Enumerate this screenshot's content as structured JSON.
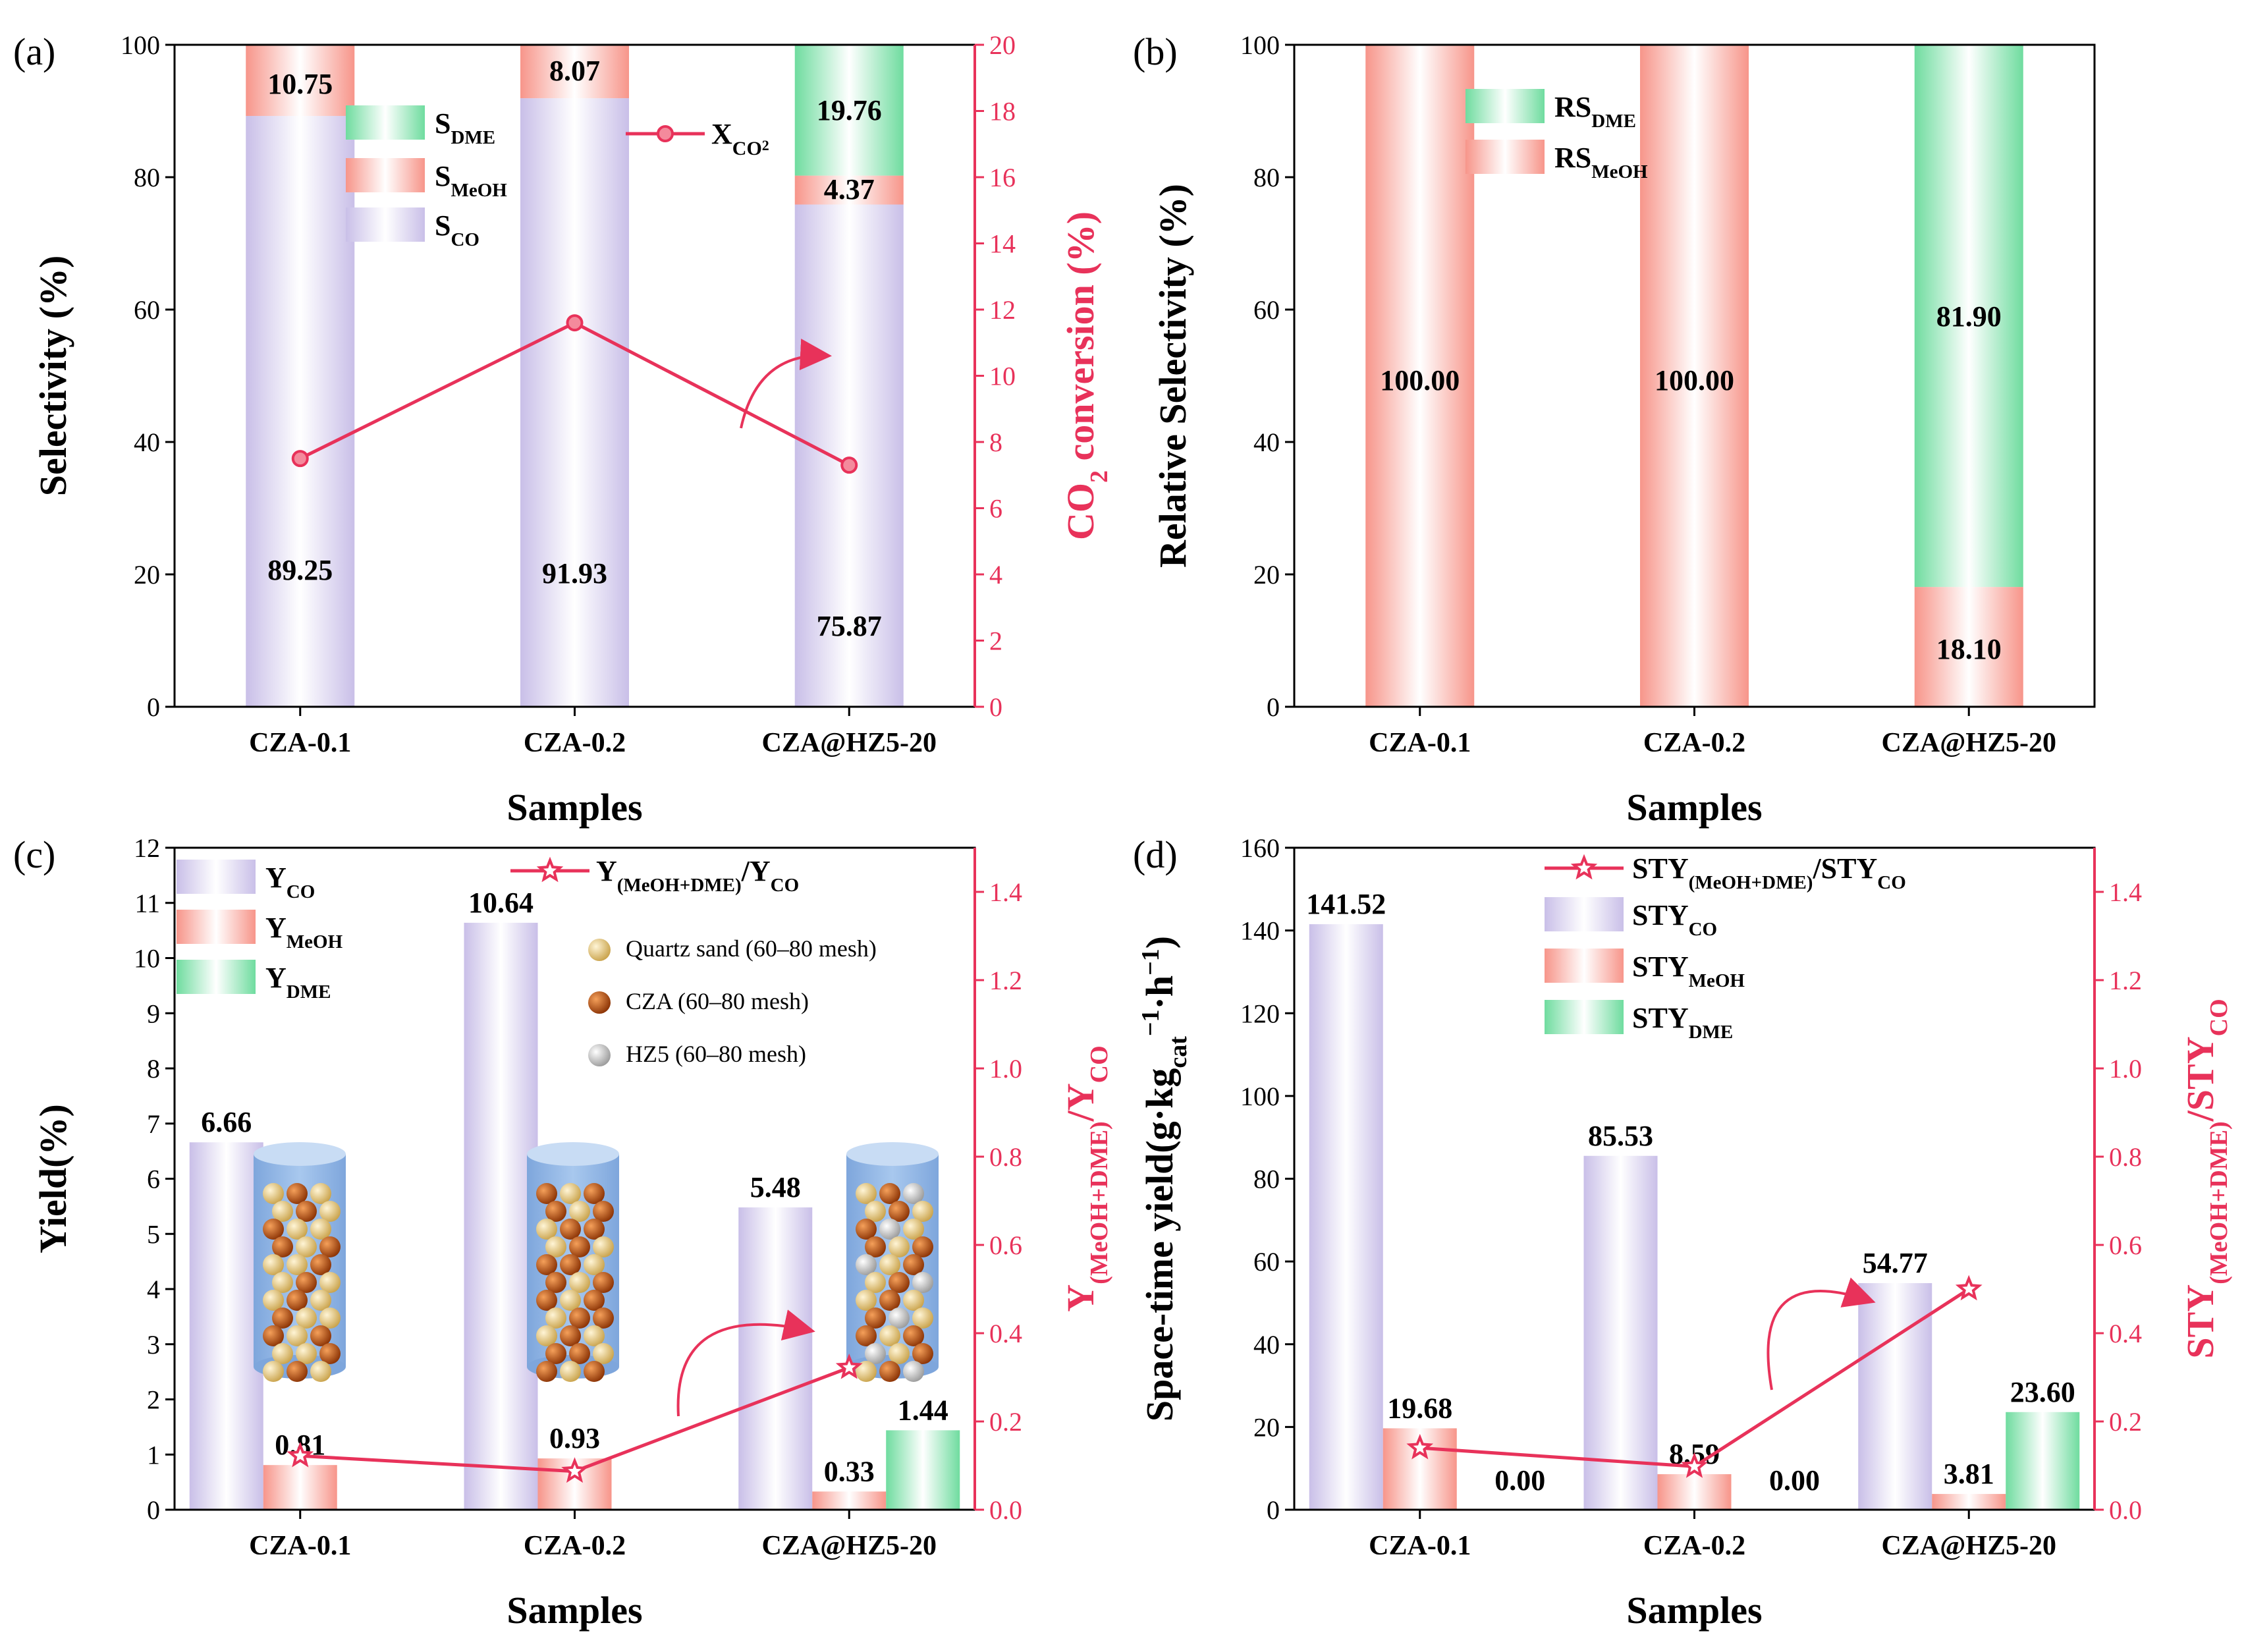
{
  "colors": {
    "co_fill": "#d9d2f0",
    "meoh_fill": "#f8b2a8",
    "dme_fill": "#a6e8c3",
    "line": "#e8325a",
    "axis": "#000000",
    "reactor": "#9bbde8",
    "quartz": "#f0d48a",
    "cza": "#c8560c",
    "hz5": "#e8e8e8"
  },
  "chart_data": [
    {
      "id": "a",
      "panel_label": "(a)",
      "type": "bar",
      "stacked": true,
      "categories": [
        "CZA-0.1",
        "CZA-0.2",
        "CZA@HZ5-20"
      ],
      "series": [
        {
          "key": "co",
          "name": "S",
          "sub": "CO",
          "values": [
            89.25,
            91.93,
            75.87
          ],
          "labels": [
            "89.25",
            "91.93",
            "75.87"
          ]
        },
        {
          "key": "meoh",
          "name": "S",
          "sub": "MeOH",
          "values": [
            10.75,
            8.07,
            4.37
          ],
          "labels": [
            "10.75",
            "8.07",
            "4.37"
          ]
        },
        {
          "key": "dme",
          "name": "S",
          "sub": "DME",
          "values": [
            0,
            0,
            19.76
          ],
          "labels": [
            "",
            "",
            "19.76"
          ]
        }
      ],
      "line_series": {
        "name": "X",
        "sub": "CO",
        "sub2": "2",
        "values": [
          7.5,
          11.6,
          7.3
        ]
      },
      "xlabel": "Samples",
      "ylabel": "Selectivity (%)",
      "ylim": [
        0,
        100
      ],
      "yticks": [
        "0",
        "20",
        "40",
        "60",
        "80",
        "100"
      ],
      "y2label_main": "CO",
      "y2label_sub": "2",
      "y2label_rest": " conversion (%)",
      "y2lim": [
        0,
        20
      ],
      "y2ticks": [
        "0",
        "2",
        "4",
        "6",
        "8",
        "10",
        "12",
        "14",
        "16",
        "18",
        "20"
      ],
      "grid": false,
      "legend_position": "top-center"
    },
    {
      "id": "b",
      "panel_label": "(b)",
      "type": "bar",
      "stacked": true,
      "categories": [
        "CZA-0.1",
        "CZA-0.2",
        "CZA@HZ5-20"
      ],
      "series": [
        {
          "key": "meoh",
          "name": "RS",
          "sub": "MeOH",
          "values": [
            100.0,
            100.0,
            18.1
          ],
          "labels": [
            "100.00",
            "100.00",
            "18.10"
          ]
        },
        {
          "key": "dme",
          "name": "RS",
          "sub": "DME",
          "values": [
            0,
            0,
            81.9
          ],
          "labels": [
            "",
            "",
            "81.90"
          ]
        }
      ],
      "xlabel": "Samples",
      "ylabel": "Relative Selectivity (%)",
      "ylim": [
        0,
        100
      ],
      "yticks": [
        "0",
        "20",
        "40",
        "60",
        "80",
        "100"
      ],
      "grid": false,
      "legend_position": "top-center"
    },
    {
      "id": "c",
      "panel_label": "(c)",
      "type": "bar",
      "stacked": false,
      "categories": [
        "CZA-0.1",
        "CZA-0.2",
        "CZA@HZ5-20"
      ],
      "series": [
        {
          "key": "co",
          "name": "Y",
          "sub": "CO",
          "values": [
            6.66,
            10.64,
            5.48
          ],
          "labels": [
            "6.66",
            "10.64",
            "5.48"
          ]
        },
        {
          "key": "meoh",
          "name": "Y",
          "sub": "MeOH",
          "values": [
            0.81,
            0.93,
            0.33
          ],
          "labels": [
            "0.81",
            "0.93",
            "0.33"
          ]
        },
        {
          "key": "dme",
          "name": "Y",
          "sub": "DME",
          "values": [
            0,
            0,
            1.44
          ],
          "labels": [
            "",
            "",
            "1.44"
          ]
        }
      ],
      "line_series": {
        "name": "Y",
        "sub": "(MeOH+DME)",
        "tail": "/Y",
        "tail_sub": "CO",
        "values": [
          0.122,
          0.087,
          0.322
        ]
      },
      "xlabel": "Samples",
      "ylabel": "Yield(%)",
      "ylim": [
        0,
        12
      ],
      "yticks": [
        "0",
        "1",
        "2",
        "3",
        "4",
        "5",
        "6",
        "7",
        "8",
        "9",
        "10",
        "11",
        "12"
      ],
      "y2label": {
        "a": "Y",
        "b": "(MeOH+DME)",
        "c": "/Y",
        "d": "CO"
      },
      "y2lim": [
        0,
        1.5
      ],
      "y2ticks": [
        "0.0",
        "0.2",
        "0.4",
        "0.6",
        "0.8",
        "1.0",
        "1.2",
        "1.4"
      ],
      "annotations": [
        "Quartz sand (60–80 mesh)",
        "CZA (60–80 mesh)",
        "HZ5 (60–80 mesh)"
      ],
      "grid": false,
      "legend_position": "top-left"
    },
    {
      "id": "d",
      "panel_label": "(d)",
      "type": "bar",
      "stacked": false,
      "categories": [
        "CZA-0.1",
        "CZA-0.2",
        "CZA@HZ5-20"
      ],
      "series": [
        {
          "key": "co",
          "name": "STY",
          "sub": "CO",
          "values": [
            141.52,
            85.53,
            54.77
          ],
          "labels": [
            "141.52",
            "85.53",
            "54.77"
          ]
        },
        {
          "key": "meoh",
          "name": "STY",
          "sub": "MeOH",
          "values": [
            19.68,
            8.59,
            3.81
          ],
          "labels": [
            "19.68",
            "8.59",
            "3.81"
          ]
        },
        {
          "key": "dme",
          "name": "STY",
          "sub": "DME",
          "values": [
            0.0,
            0.0,
            23.6
          ],
          "labels": [
            "0.00",
            "0.00",
            "23.60"
          ]
        }
      ],
      "line_series": {
        "name": "STY",
        "sub": "(MeOH+DME)",
        "tail": "/STY",
        "tail_sub": "CO",
        "values": [
          0.14,
          0.098,
          0.5
        ]
      },
      "xlabel": "Samples",
      "ylabel": {
        "a": "Space-time yield(g·kg",
        "b": "cat",
        "c": "−1",
        "d": "·h",
        "e": "−1",
        "f": ")"
      },
      "ylim": [
        0,
        160
      ],
      "yticks": [
        "0",
        "20",
        "40",
        "60",
        "80",
        "100",
        "120",
        "140",
        "160"
      ],
      "y2label": {
        "a": "STY",
        "b": "(MeOH+DME)",
        "c": "/STY",
        "d": "CO"
      },
      "y2lim": [
        0,
        1.5
      ],
      "y2ticks": [
        "0.0",
        "0.2",
        "0.4",
        "0.6",
        "0.8",
        "1.0",
        "1.2",
        "1.4"
      ],
      "grid": false,
      "legend_position": "top-right"
    }
  ]
}
